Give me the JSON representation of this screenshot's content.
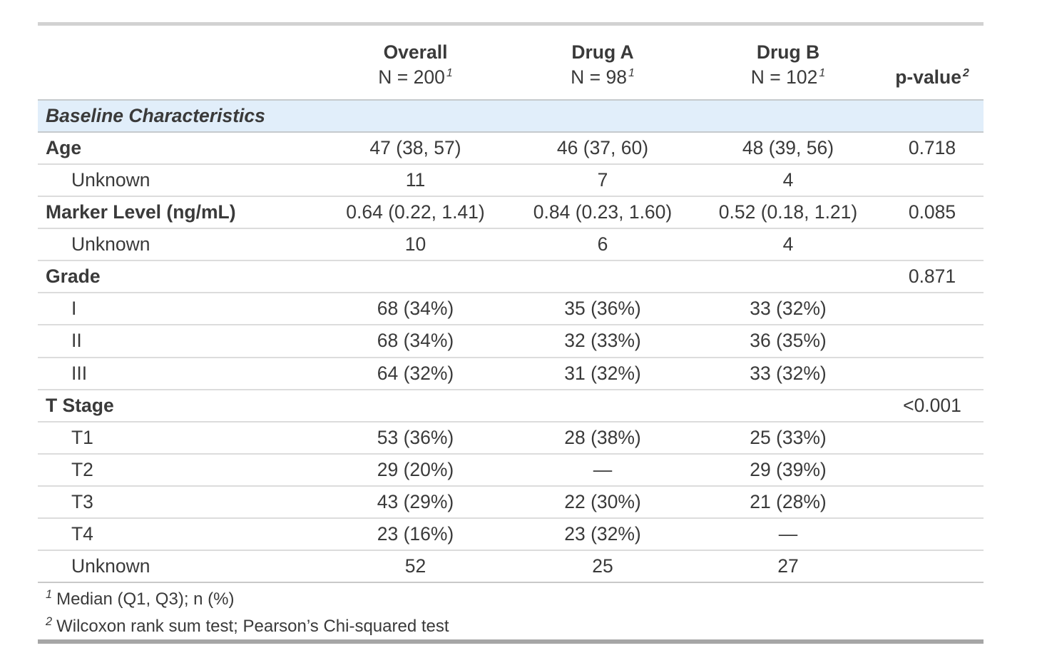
{
  "table": {
    "columns": {
      "label": {
        "title": ""
      },
      "overall": {
        "title": "Overall",
        "subtitle": "N = 200",
        "footnote_ref": "1"
      },
      "drug_a": {
        "title": "Drug A",
        "subtitle": "N = 98",
        "footnote_ref": "1"
      },
      "drug_b": {
        "title": "Drug B",
        "subtitle": "N = 102",
        "footnote_ref": "1"
      },
      "p_value": {
        "title": "p-value",
        "footnote_ref": "2"
      }
    },
    "group_header": "Baseline Characteristics",
    "rows": [
      {
        "label": "Age",
        "overall": "47 (38, 57)",
        "drug_a": "46 (37, 60)",
        "drug_b": "48 (39, 56)",
        "p_value": "0.718"
      },
      {
        "label": "Unknown",
        "overall": "11",
        "drug_a": "7",
        "drug_b": "4",
        "p_value": ""
      },
      {
        "label": "Marker Level (ng/mL)",
        "overall": "0.64 (0.22, 1.41)",
        "drug_a": "0.84 (0.23, 1.60)",
        "drug_b": "0.52 (0.18, 1.21)",
        "p_value": "0.085"
      },
      {
        "label": "Unknown",
        "overall": "10",
        "drug_a": "6",
        "drug_b": "4",
        "p_value": ""
      },
      {
        "label": "Grade",
        "overall": "",
        "drug_a": "",
        "drug_b": "",
        "p_value": "0.871"
      },
      {
        "label": "I",
        "overall": "68 (34%)",
        "drug_a": "35 (36%)",
        "drug_b": "33 (32%)",
        "p_value": ""
      },
      {
        "label": "II",
        "overall": "68 (34%)",
        "drug_a": "32 (33%)",
        "drug_b": "36 (35%)",
        "p_value": ""
      },
      {
        "label": "III",
        "overall": "64 (32%)",
        "drug_a": "31 (32%)",
        "drug_b": "33 (32%)",
        "p_value": ""
      },
      {
        "label": "T Stage",
        "overall": "",
        "drug_a": "",
        "drug_b": "",
        "p_value": "<0.001"
      },
      {
        "label": "T1",
        "overall": "53 (36%)",
        "drug_a": "28 (38%)",
        "drug_b": "25 (33%)",
        "p_value": ""
      },
      {
        "label": "T2",
        "overall": "29 (20%)",
        "drug_a": "—",
        "drug_b": "29 (39%)",
        "p_value": ""
      },
      {
        "label": "T3",
        "overall": "43 (29%)",
        "drug_a": "22 (30%)",
        "drug_b": "21 (28%)",
        "p_value": ""
      },
      {
        "label": "T4",
        "overall": "23 (16%)",
        "drug_a": "23 (32%)",
        "drug_b": "—",
        "p_value": ""
      },
      {
        "label": "Unknown",
        "overall": "52",
        "drug_a": "25",
        "drug_b": "27",
        "p_value": ""
      }
    ],
    "footnotes": [
      {
        "ref": "1",
        "text": "Median (Q1, Q3); n (%)"
      },
      {
        "ref": "2",
        "text": "Wilcoxon rank sum test; Pearson’s Chi-squared test"
      }
    ],
    "colors": {
      "group_row_background": "#e1eefa",
      "text": "#3a3a3a",
      "top_rule": "#d2d2d2",
      "bottom_rule": "#a6a6a6",
      "row_divider": "#dcdcdc"
    }
  }
}
